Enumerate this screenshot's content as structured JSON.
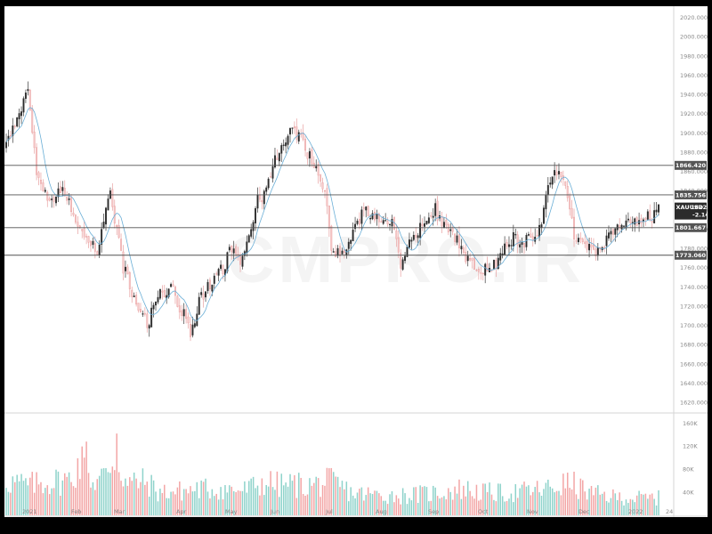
{
  "watermark": "CMPRO.IR",
  "chart_data": {
    "type": "candlestick",
    "symbol": "XAUUSD",
    "last_price": "1822.645",
    "change": "-2.145",
    "ylim": [
      1610,
      2030
    ],
    "y_ticks": [
      "1620.000",
      "1640.000",
      "1660.000",
      "1680.000",
      "1700.000",
      "1720.000",
      "1740.000",
      "1760.000",
      "1780.000",
      "1800.000",
      "1820.000",
      "1840.000",
      "1860.000",
      "1880.000",
      "1900.000",
      "1920.000",
      "1940.000",
      "1960.000",
      "1980.000",
      "2000.000",
      "2020.000"
    ],
    "x_ticks": [
      "2021",
      "Feb",
      "Mar",
      "Apr",
      "May",
      "Jun",
      "Jul",
      "Aug",
      "Sep",
      "Oct",
      "Nov",
      "Dec",
      "2022",
      "24"
    ],
    "levels": [
      "1866.420",
      "1835.756",
      "1801.667",
      "1773.060"
    ],
    "volume_ticks": [
      "40K",
      "80K",
      "120K",
      "160K"
    ],
    "volume_ylim": [
      0,
      170000
    ],
    "colors": {
      "up": "#26a69a",
      "down": "#ef5350",
      "line": "#6aaed6",
      "level": "#505050",
      "price_tag": "#2b2b2b"
    },
    "moving_average": "line",
    "anchors": [
      [
        0,
        1890
      ],
      [
        5,
        1910
      ],
      [
        10,
        1945
      ],
      [
        14,
        1860
      ],
      [
        20,
        1825
      ],
      [
        26,
        1845
      ],
      [
        30,
        1825
      ],
      [
        36,
        1790
      ],
      [
        42,
        1780
      ],
      [
        48,
        1835
      ],
      [
        54,
        1760
      ],
      [
        60,
        1725
      ],
      [
        65,
        1700
      ],
      [
        70,
        1730
      ],
      [
        76,
        1740
      ],
      [
        80,
        1720
      ],
      [
        85,
        1695
      ],
      [
        90,
        1730
      ],
      [
        95,
        1745
      ],
      [
        100,
        1760
      ],
      [
        104,
        1780
      ],
      [
        108,
        1770
      ],
      [
        112,
        1790
      ],
      [
        116,
        1830
      ],
      [
        120,
        1840
      ],
      [
        124,
        1875
      ],
      [
        128,
        1890
      ],
      [
        132,
        1905
      ],
      [
        136,
        1895
      ],
      [
        140,
        1875
      ],
      [
        144,
        1855
      ],
      [
        148,
        1830
      ],
      [
        150,
        1780
      ],
      [
        154,
        1775
      ],
      [
        158,
        1785
      ],
      [
        162,
        1810
      ],
      [
        166,
        1818
      ],
      [
        170,
        1812
      ],
      [
        174,
        1810
      ],
      [
        178,
        1812
      ],
      [
        182,
        1760
      ],
      [
        186,
        1790
      ],
      [
        190,
        1800
      ],
      [
        194,
        1810
      ],
      [
        198,
        1820
      ],
      [
        202,
        1805
      ],
      [
        206,
        1795
      ],
      [
        210,
        1780
      ],
      [
        214,
        1765
      ],
      [
        218,
        1750
      ],
      [
        222,
        1760
      ],
      [
        226,
        1765
      ],
      [
        230,
        1778
      ],
      [
        234,
        1790
      ],
      [
        238,
        1785
      ],
      [
        242,
        1790
      ],
      [
        246,
        1800
      ],
      [
        250,
        1840
      ],
      [
        253,
        1865
      ],
      [
        256,
        1860
      ],
      [
        260,
        1820
      ],
      [
        262,
        1795
      ],
      [
        266,
        1790
      ],
      [
        270,
        1775
      ],
      [
        274,
        1780
      ],
      [
        278,
        1790
      ],
      [
        282,
        1800
      ],
      [
        286,
        1805
      ],
      [
        290,
        1808
      ],
      [
        294,
        1812
      ],
      [
        298,
        1815
      ],
      [
        301,
        1822
      ]
    ],
    "volume_anchors": [
      [
        0,
        60000
      ],
      [
        10,
        52000
      ],
      [
        20,
        58000
      ],
      [
        30,
        62000
      ],
      [
        34,
        95000
      ],
      [
        40,
        58000
      ],
      [
        46,
        70000
      ],
      [
        50,
        105000
      ],
      [
        56,
        52000
      ],
      [
        60,
        60000
      ],
      [
        66,
        55000
      ],
      [
        70,
        40000
      ],
      [
        80,
        42000
      ],
      [
        90,
        46000
      ],
      [
        100,
        45000
      ],
      [
        110,
        44000
      ],
      [
        120,
        58000
      ],
      [
        126,
        52000
      ],
      [
        130,
        54000
      ],
      [
        140,
        52000
      ],
      [
        150,
        58000
      ],
      [
        160,
        38000
      ],
      [
        170,
        36000
      ],
      [
        180,
        34000
      ],
      [
        190,
        36000
      ],
      [
        200,
        40000
      ],
      [
        210,
        46000
      ],
      [
        220,
        40000
      ],
      [
        230,
        38000
      ],
      [
        240,
        42000
      ],
      [
        250,
        46000
      ],
      [
        260,
        56000
      ],
      [
        270,
        38000
      ],
      [
        280,
        32000
      ],
      [
        290,
        30000
      ],
      [
        301,
        30000
      ]
    ]
  }
}
